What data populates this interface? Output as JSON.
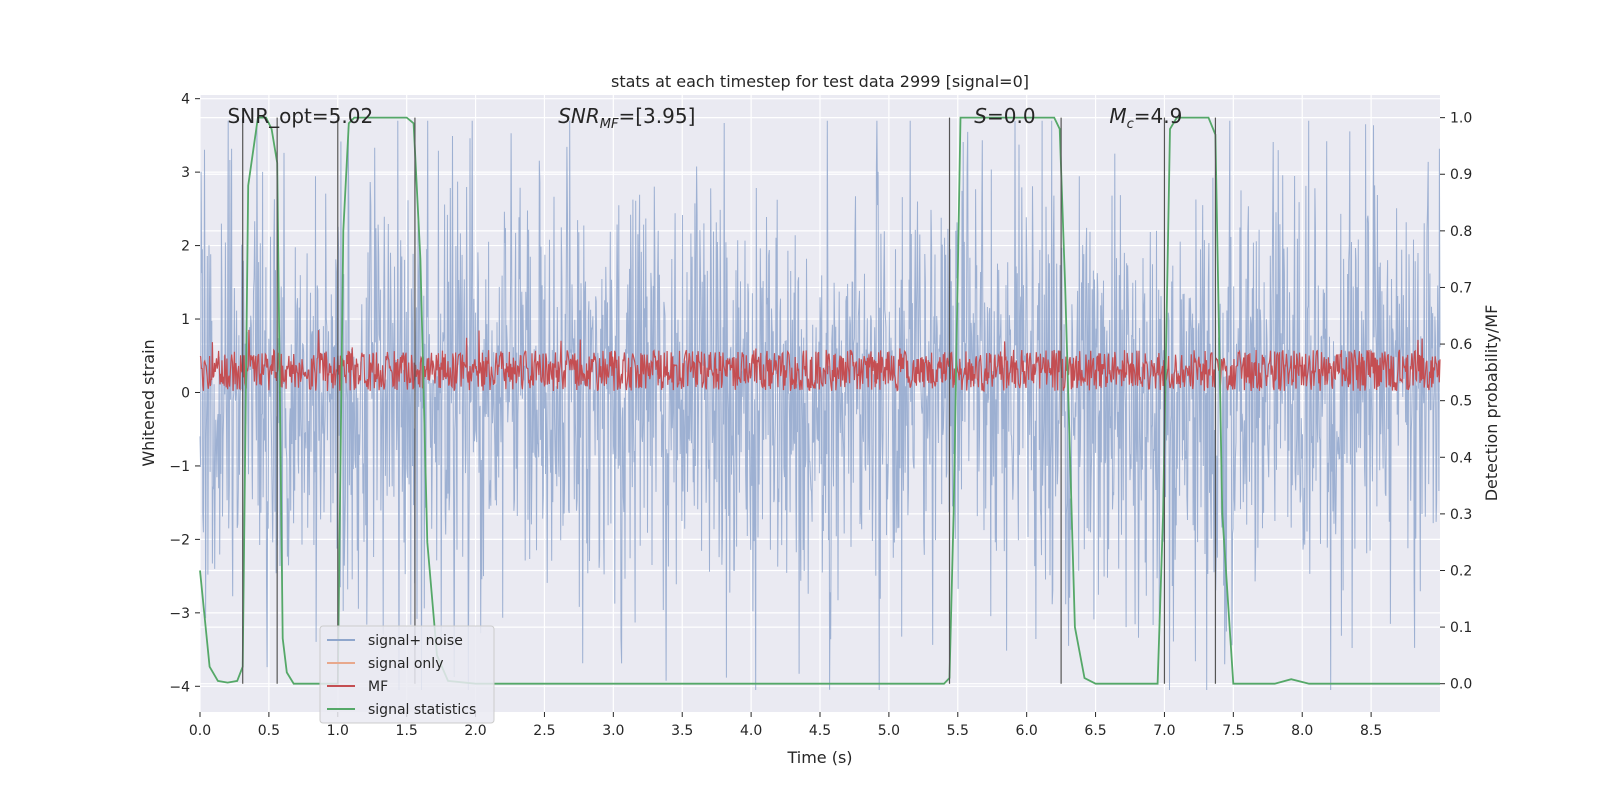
{
  "chart_data": {
    "type": "line",
    "title": "stats at each timestep for test data 2999 [signal=0]",
    "xlabel": "Time (s)",
    "ylabel_left": "Whitened strain",
    "ylabel_right": "Detection probability/MF",
    "xlim": [
      0,
      9
    ],
    "ylim_left": [
      -4.35,
      4.05
    ],
    "ylim_right": [
      -0.05,
      1.04
    ],
    "x_ticks": [
      "0.0",
      "0.5",
      "1.0",
      "1.5",
      "2.0",
      "2.5",
      "3.0",
      "3.5",
      "4.0",
      "4.5",
      "5.0",
      "5.5",
      "6.0",
      "6.5",
      "7.0",
      "7.5",
      "8.0",
      "8.5"
    ],
    "y_left_ticks": [
      "−4",
      "−3",
      "−2",
      "−1",
      "0",
      "1",
      "2",
      "3",
      "4"
    ],
    "y_right_ticks": [
      "0.0",
      "0.1",
      "0.2",
      "0.3",
      "0.4",
      "0.5",
      "0.6",
      "0.7",
      "0.8",
      "0.9",
      "1.0"
    ],
    "grid": true,
    "legend_position": "lower-left",
    "annotations": [
      {
        "text": "SNR_opt=5.02",
        "x": 0.2
      },
      {
        "text": "SNR",
        "sub": "MF",
        "suffix": "=[3.95]",
        "x": 2.6
      },
      {
        "text": "S",
        "suffix": "=0.0",
        "x": 5.62
      },
      {
        "text": "M",
        "sub": "c",
        "suffix": "=4.9",
        "x": 6.6
      }
    ],
    "series": [
      {
        "name": "signal+ noise",
        "color": "#8fa6cc",
        "axis": "left",
        "noise_amplitude": 3.0
      },
      {
        "name": "signal only",
        "color": "#e8a88c",
        "axis": "left",
        "values": []
      },
      {
        "name": "MF",
        "color": "#c44e52",
        "axis": "left",
        "center": 0.3,
        "amplitude": 0.35
      },
      {
        "name": "signal statistics",
        "color": "#55a868",
        "axis": "right",
        "x": [
          0.0,
          0.07,
          0.13,
          0.2,
          0.27,
          0.31,
          0.35,
          0.42,
          0.48,
          0.52,
          0.56,
          0.6,
          0.63,
          0.68,
          0.72,
          1.0,
          1.04,
          1.08,
          1.12,
          1.5,
          1.55,
          1.6,
          1.65,
          1.72,
          1.8,
          2.0,
          3.0,
          4.0,
          5.0,
          5.4,
          5.44,
          5.47,
          5.52,
          6.2,
          6.24,
          6.28,
          6.35,
          6.42,
          6.5,
          6.95,
          6.99,
          7.04,
          7.09,
          7.32,
          7.37,
          7.42,
          7.5,
          7.8,
          7.92,
          8.05,
          8.5,
          9.0
        ],
        "y": [
          0.2,
          0.03,
          0.005,
          0.002,
          0.005,
          0.03,
          0.88,
          1.0,
          1.0,
          0.98,
          0.92,
          0.08,
          0.02,
          0.0,
          0.0,
          0.0,
          0.8,
          0.99,
          1.0,
          1.0,
          0.99,
          0.75,
          0.25,
          0.05,
          0.005,
          0.0,
          0.0,
          0.0,
          0.0,
          0.0,
          0.01,
          0.3,
          1.0,
          1.0,
          0.98,
          0.7,
          0.1,
          0.01,
          0.0,
          0.0,
          0.3,
          0.98,
          1.0,
          1.0,
          0.97,
          0.3,
          0.0,
          0.0,
          0.008,
          0.0,
          0.0,
          0.0
        ]
      }
    ],
    "vertical_markers_x": [
      0.31,
      0.56,
      1.0,
      1.56,
      5.44,
      6.25,
      7.0,
      7.37
    ]
  }
}
